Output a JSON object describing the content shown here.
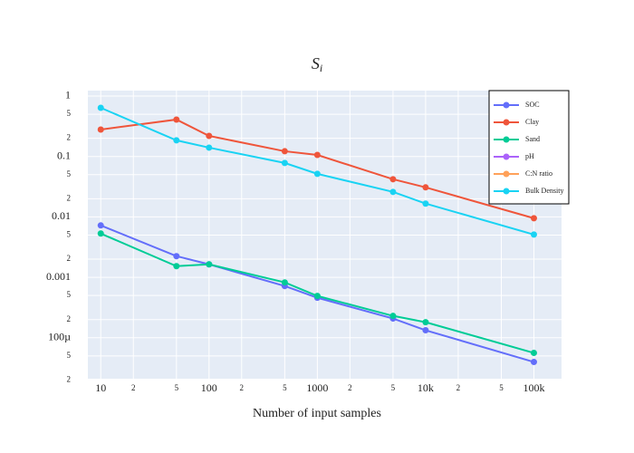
{
  "chart_data": {
    "type": "line",
    "title": "S",
    "title_subscript": "i",
    "x_label": "Number of input samples",
    "x": [
      10,
      50,
      100,
      500,
      1000,
      5000,
      10000,
      100000
    ],
    "log_x": true,
    "log_y": true,
    "grid": true,
    "legend_corner": "top right",
    "xlim": [
      7.6,
      180000
    ],
    "ylim": [
      2.1e-05,
      1.23
    ],
    "xticks": [
      10,
      {
        "value": 20,
        "label": "2"
      },
      {
        "value": 50,
        "label": "5"
      },
      100,
      {
        "value": 200,
        "label": "2"
      },
      {
        "value": 500,
        "label": "5"
      },
      1000,
      {
        "value": 2000,
        "label": "2"
      },
      {
        "value": 5000,
        "label": "5"
      },
      {
        "value": 10000,
        "label": "10k"
      },
      {
        "value": 20000,
        "label": "2"
      },
      {
        "value": 50000,
        "label": "5"
      },
      {
        "value": 100000,
        "label": "100k"
      }
    ],
    "yticks": [
      1,
      {
        "value": 0.5,
        "label": "5"
      },
      {
        "value": 0.2,
        "label": "2"
      },
      0.1,
      {
        "value": 0.05,
        "label": "5"
      },
      {
        "value": 0.02,
        "label": "2"
      },
      0.01,
      {
        "value": 0.005,
        "label": "5"
      },
      {
        "value": 0.002,
        "label": "2"
      },
      0.001,
      {
        "value": 0.0005,
        "label": "5"
      },
      {
        "value": 0.0002,
        "label": "2"
      },
      {
        "value": 0.0001,
        "label": "100µ"
      },
      {
        "value": 5e-05,
        "label": "5"
      },
      {
        "value": 2e-05,
        "label": "2"
      }
    ],
    "series": [
      {
        "name": "SOC",
        "color": "#636efa",
        "values": [
          0.00723,
          0.00224,
          0.00164,
          0.000718,
          0.000459,
          0.000208,
          0.000133,
          3.97e-05
        ]
      },
      {
        "name": "Clay",
        "color": "#ef553b",
        "values": [
          0.279,
          0.408,
          0.219,
          0.122,
          0.106,
          0.042,
          0.0308,
          0.0095
        ]
      },
      {
        "name": "Sand",
        "color": "#00cc96",
        "values": [
          0.0053,
          0.00153,
          0.00164,
          0.000824,
          0.000492,
          0.00023,
          0.000181,
          5.61e-05
        ]
      },
      {
        "name": "pH",
        "color": "#ab63fa",
        "values": [
          null,
          null,
          null,
          null,
          null,
          null,
          null,
          null
        ]
      },
      {
        "name": "C:N ratio",
        "color": "#ffa15a",
        "values": [
          null,
          null,
          null,
          null,
          null,
          null,
          null,
          null
        ]
      },
      {
        "name": "Bulk Density",
        "color": "#19d3f3",
        "values": [
          0.638,
          0.185,
          0.14,
          0.078,
          0.0516,
          0.0259,
          0.0166,
          0.0051
        ]
      }
    ]
  }
}
